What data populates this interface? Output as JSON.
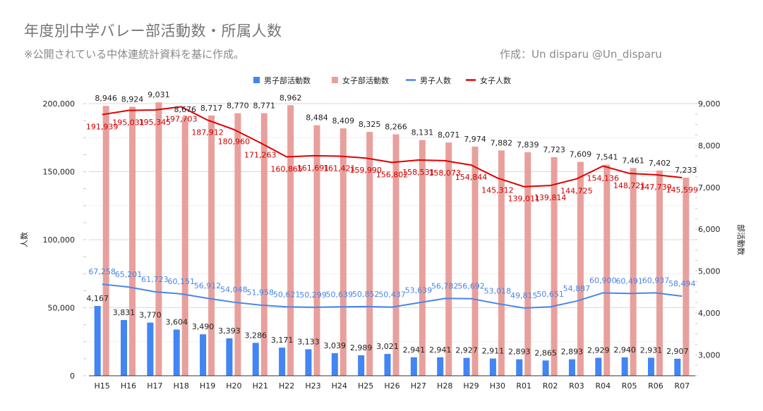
{
  "title": "年度別中学バレー部活動数・所属人数",
  "subtitle": "※公開されている中体連統計資料を基に作成。",
  "credit": "作成：Un disparu @Un_disparu",
  "colors": {
    "boys_clubs": "#4285f4",
    "girls_clubs": "#e8a09c",
    "boys_members": "#4a86e8",
    "girls_members": "#e00000",
    "boys_label": "#4a86e8",
    "girls_label": "#d00000"
  },
  "chart_data": {
    "type": "bar",
    "categories": [
      "H15",
      "H16",
      "H17",
      "H18",
      "H19",
      "H20",
      "H21",
      "H22",
      "H23",
      "H24",
      "H25",
      "H26",
      "H27",
      "H28",
      "H29",
      "H30",
      "R01",
      "R02",
      "R03",
      "R04",
      "R05",
      "R06",
      "R07"
    ],
    "left_axis": {
      "label": "人数",
      "range": [
        0,
        200000
      ],
      "ticks": [
        "0",
        "50,000",
        "100,000",
        "150,000",
        "200,000"
      ]
    },
    "right_axis": {
      "label": "部活動数",
      "range": [
        2500,
        9000
      ],
      "ticks": [
        "3,000",
        "4,000",
        "5,000",
        "6,000",
        "7,000",
        "8,000",
        "9,000"
      ]
    },
    "legend_position": "top",
    "series": [
      {
        "name": "男子部活動数",
        "kind": "bar",
        "axis": "right",
        "values": [
          4167,
          3831,
          3770,
          3604,
          3490,
          3393,
          3286,
          3171,
          3133,
          3039,
          2989,
          3021,
          2941,
          2941,
          2927,
          2911,
          2893,
          2865,
          2893,
          2929,
          2940,
          2931,
          2907
        ],
        "labels": [
          "4,167",
          "3,831",
          "3,770",
          "3,604",
          "3,490",
          "3,393",
          "3,286",
          "3,171",
          "3,133",
          "3,039",
          "2,989",
          "3,021",
          "2,941",
          "2,941",
          "2,927",
          "2,911",
          "2,893",
          "2,865",
          "2,893",
          "2,929",
          "2,940",
          "2,931",
          "2,907"
        ]
      },
      {
        "name": "女子部活動数",
        "kind": "bar",
        "axis": "right",
        "values": [
          8946,
          8924,
          9031,
          8676,
          8717,
          8770,
          8771,
          8962,
          8484,
          8409,
          8325,
          8266,
          8131,
          8071,
          7974,
          7882,
          7839,
          7723,
          7609,
          7541,
          7461,
          7402,
          7233
        ],
        "labels": [
          "8,946",
          "8,924",
          "9,031",
          "8,676",
          "8,717",
          "8,770",
          "8,771",
          "8,962",
          "8,484",
          "8,409",
          "8,325",
          "8,266",
          "8,131",
          "8,071",
          "7,974",
          "7,882",
          "7,839",
          "7,723",
          "7,609",
          "7,541",
          "7,461",
          "7,402",
          "7,233"
        ]
      },
      {
        "name": "男子人数",
        "kind": "line",
        "axis": "left",
        "values": [
          67258,
          65201,
          61723,
          60151,
          56912,
          54048,
          51958,
          50621,
          50299,
          50639,
          50852,
          50437,
          53639,
          56782,
          56692,
          53018,
          49815,
          50651,
          54887,
          60900,
          60491,
          60937,
          58494
        ],
        "labels": [
          "67,258",
          "65,201",
          "61,723",
          "60,151",
          "56,912",
          "54,048",
          "51,958",
          "50,621",
          "50,299",
          "50,639",
          "50,852",
          "50,437",
          "53,639",
          "56,782",
          "56,692",
          "53,018",
          "49,815",
          "50,651",
          "54,887",
          "60,900",
          "60,491",
          "60,937",
          "58,494"
        ]
      },
      {
        "name": "女子人数",
        "kind": "line",
        "axis": "left",
        "values": [
          191939,
          195031,
          195345,
          197703,
          187912,
          180960,
          171263,
          160865,
          161691,
          161421,
          159990,
          156802,
          158531,
          158073,
          154844,
          145312,
          139011,
          139814,
          144725,
          154136,
          148721,
          147739,
          145599
        ],
        "labels": [
          "191,939",
          "195,031",
          "195,345",
          "197,703",
          "187,912",
          "180,960",
          "171,263",
          "160,865",
          "161,691",
          "161,421",
          "159,990",
          "156,802",
          "158,531",
          "158,073",
          "154,844",
          "145,312",
          "139,011",
          "139,814",
          "144,725",
          "154,136",
          "148,721",
          "147,739",
          "145,599"
        ]
      }
    ]
  }
}
